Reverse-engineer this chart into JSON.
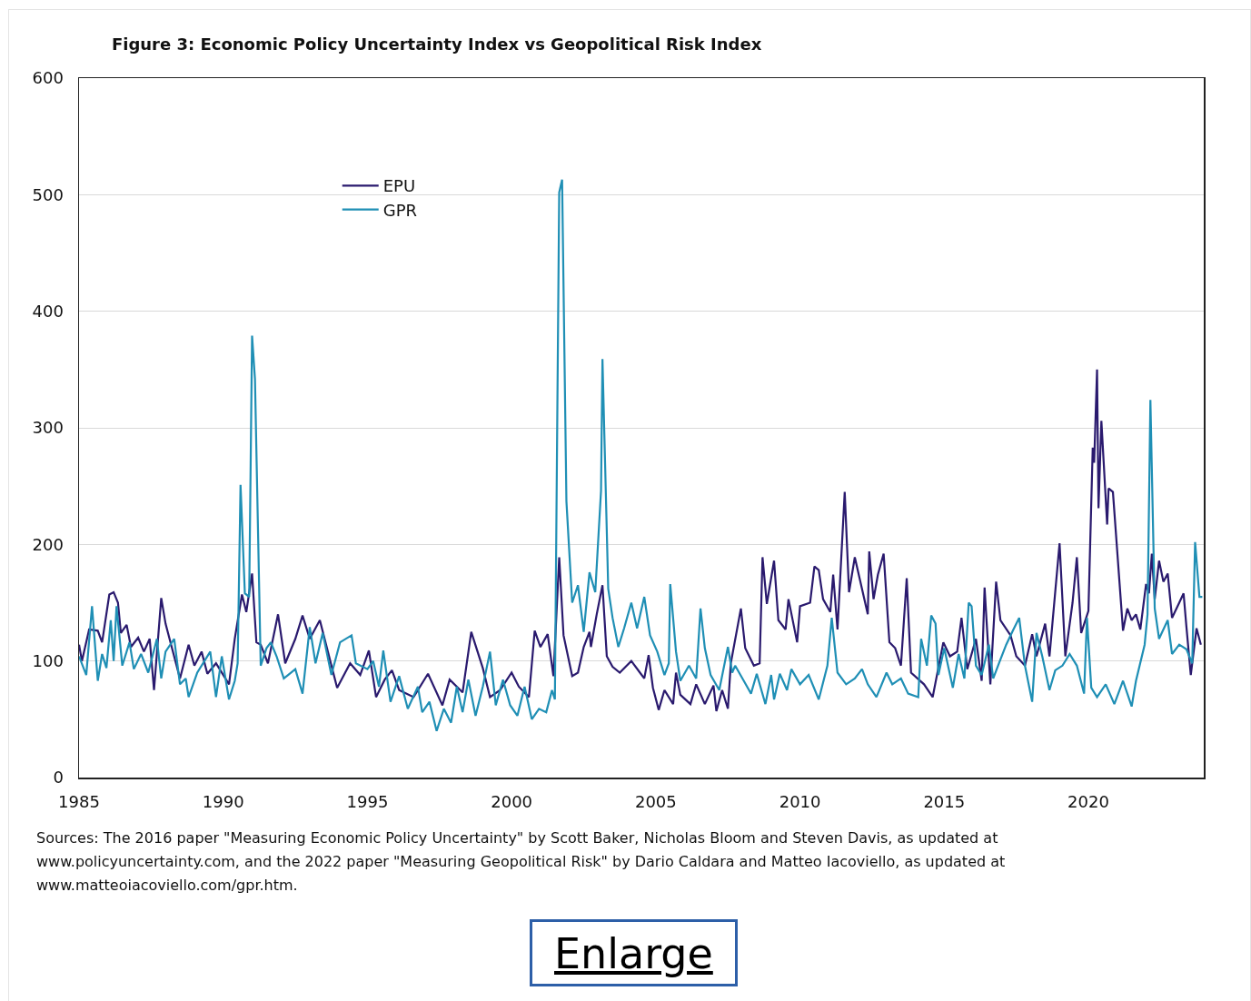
{
  "chart_data": {
    "type": "line",
    "title": "Figure 3: Economic Policy Uncertainty Index vs Geopolitical Risk Index",
    "xlim": [
      1985,
      2024
    ],
    "xticks": [
      1985,
      1990,
      1995,
      2000,
      2005,
      2010,
      2015,
      2020
    ],
    "ylim": [
      0,
      600
    ],
    "yticks": [
      0,
      100,
      200,
      300,
      400,
      500,
      600
    ],
    "grid": "y",
    "legend": "top left",
    "line_style": "solid",
    "marker": "none",
    "series": [
      {
        "name": "EPU",
        "color": "#2a1a6e",
        "x": [
          1985.0,
          1985.1,
          1985.35,
          1985.65,
          1985.8,
          1986.05,
          1986.2,
          1986.35,
          1986.45,
          1986.65,
          1986.8,
          1987.05,
          1987.25,
          1987.45,
          1987.6,
          1987.85,
          1988.0,
          1988.5,
          1988.8,
          1989.0,
          1989.25,
          1989.45,
          1989.75,
          1990.2,
          1990.4,
          1990.65,
          1990.8,
          1991.0,
          1991.15,
          1991.3,
          1991.55,
          1991.9,
          1992.15,
          1992.5,
          1992.75,
          1993.0,
          1993.35,
          1993.7,
          1993.95,
          1994.4,
          1994.75,
          1995.05,
          1995.3,
          1995.6,
          1995.85,
          1996.1,
          1996.6,
          1997.1,
          1997.6,
          1997.85,
          1998.3,
          1998.6,
          1999.0,
          1999.25,
          1999.6,
          2000.0,
          2000.25,
          2000.6,
          2000.8,
          2001.0,
          2001.25,
          2001.45,
          2001.65,
          2001.8,
          2002.1,
          2002.3,
          2002.5,
          2002.7,
          2002.75,
          2002.95,
          2003.15,
          2003.3,
          2003.5,
          2003.75,
          2004.15,
          2004.45,
          2004.6,
          2004.75,
          2004.9,
          2005.1,
          2005.3,
          2005.6,
          2005.7,
          2005.85,
          2006.2,
          2006.4,
          2006.7,
          2007.0,
          2007.1,
          2007.3,
          2007.5,
          2007.6,
          2007.95,
          2008.1,
          2008.4,
          2008.6,
          2008.7,
          2008.85,
          2009.1,
          2009.25,
          2009.5,
          2009.6,
          2009.9,
          2010.0,
          2010.35,
          2010.5,
          2010.65,
          2010.8,
          2011.05,
          2011.15,
          2011.3,
          2011.55,
          2011.7,
          2011.9,
          2012.35,
          2012.4,
          2012.55,
          2012.7,
          2012.9,
          2013.1,
          2013.3,
          2013.5,
          2013.7,
          2013.85,
          2014.3,
          2014.6,
          2014.97,
          2015.2,
          2015.45,
          2015.6,
          2015.8,
          2016.1,
          2016.3,
          2016.4,
          2016.6,
          2016.8,
          2016.95,
          2017.3,
          2017.5,
          2017.8,
          2018.05,
          2018.2,
          2018.5,
          2018.65,
          2019.0,
          2019.2,
          2019.45,
          2019.6,
          2019.75,
          2020.0,
          2020.15,
          2020.2,
          2020.3,
          2020.35,
          2020.45,
          2020.65,
          2020.7,
          2020.85,
          2021.2,
          2021.35,
          2021.5,
          2021.65,
          2021.8,
          2022.0,
          2022.1,
          2022.2,
          2022.3,
          2022.45,
          2022.6,
          2022.75,
          2022.9,
          2023.15,
          2023.3,
          2023.4,
          2023.55,
          2023.75,
          2023.9
        ],
        "values": [
          114,
          100,
          127,
          126,
          116,
          157,
          159,
          150,
          124,
          131,
          112,
          120,
          108,
          119,
          75,
          154,
          132,
          85,
          114,
          96,
          108,
          89,
          98,
          80,
          119,
          157,
          142,
          175,
          116,
          114,
          98,
          140,
          98,
          119,
          139,
          119,
          135,
          101,
          77,
          98,
          88,
          109,
          69,
          84,
          92,
          75,
          69,
          89,
          62,
          84,
          73,
          125,
          94,
          69,
          75,
          90,
          78,
          69,
          126,
          112,
          123,
          87,
          189,
          122,
          87,
          90,
          112,
          125,
          112,
          140,
          165,
          104,
          95,
          90,
          100,
          90,
          85,
          105,
          77,
          58,
          75,
          63,
          90,
          71,
          63,
          80,
          63,
          79,
          57,
          75,
          59,
          98,
          145,
          111,
          96,
          98,
          189,
          149,
          186,
          135,
          127,
          153,
          116,
          147,
          150,
          181,
          178,
          153,
          142,
          174,
          127,
          245,
          159,
          189,
          140,
          194,
          153,
          174,
          192,
          116,
          111,
          96,
          171,
          90,
          80,
          69,
          116,
          104,
          108,
          137,
          93,
          119,
          83,
          163,
          80,
          168,
          135,
          122,
          104,
          96,
          123,
          104,
          132,
          104,
          201,
          104,
          150,
          189,
          124,
          143,
          283,
          270,
          350,
          231,
          306,
          217,
          248,
          245,
          126,
          145,
          135,
          140,
          127,
          166,
          158,
          192,
          153,
          186,
          168,
          175,
          137,
          150,
          158,
          129,
          88,
          128,
          114
        ]
      },
      {
        "name": "GPR",
        "color": "#1f8fb5",
        "x": [
          1985.0,
          1985.25,
          1985.45,
          1985.65,
          1985.8,
          1985.95,
          1986.1,
          1986.2,
          1986.3,
          1986.5,
          1986.75,
          1986.9,
          1987.15,
          1987.4,
          1987.7,
          1987.85,
          1988.0,
          1988.3,
          1988.5,
          1988.7,
          1988.8,
          1989.1,
          1989.55,
          1989.75,
          1989.95,
          1990.2,
          1990.4,
          1990.5,
          1990.6,
          1990.75,
          1990.9,
          1991.0,
          1991.1,
          1991.3,
          1991.5,
          1991.65,
          1991.85,
          1992.1,
          1992.25,
          1992.5,
          1992.75,
          1993.0,
          1993.2,
          1993.45,
          1993.75,
          1994.05,
          1994.45,
          1994.6,
          1995.0,
          1995.2,
          1995.4,
          1995.55,
          1995.8,
          1996.1,
          1996.4,
          1996.75,
          1996.9,
          1997.15,
          1997.4,
          1997.65,
          1997.9,
          1998.1,
          1998.3,
          1998.5,
          1998.75,
          1999.0,
          1999.25,
          1999.45,
          1999.7,
          1999.95,
          2000.2,
          2000.45,
          2000.7,
          2000.95,
          2001.2,
          2001.4,
          2001.5,
          2001.65,
          2001.75,
          2001.9,
          2002.1,
          2002.3,
          2002.5,
          2002.7,
          2002.9,
          2003.1,
          2003.15,
          2003.35,
          2003.5,
          2003.7,
          2003.9,
          2004.15,
          2004.35,
          2004.6,
          2004.8,
          2005.05,
          2005.3,
          2005.45,
          2005.5,
          2005.7,
          2005.85,
          2006.15,
          2006.4,
          2006.55,
          2006.7,
          2006.9,
          2007.2,
          2007.5,
          2007.65,
          2007.75,
          2008.05,
          2008.3,
          2008.5,
          2008.8,
          2009.0,
          2009.1,
          2009.3,
          2009.55,
          2009.7,
          2010.0,
          2010.3,
          2010.65,
          2010.95,
          2011.1,
          2011.3,
          2011.6,
          2011.9,
          2012.15,
          2012.35,
          2012.65,
          2013.0,
          2013.2,
          2013.5,
          2013.75,
          2014.1,
          2014.2,
          2014.4,
          2014.55,
          2014.7,
          2014.8,
          2015.0,
          2015.3,
          2015.5,
          2015.7,
          2015.85,
          2015.95,
          2016.1,
          2016.3,
          2016.55,
          2016.7,
          2016.9,
          2017.15,
          2017.4,
          2017.6,
          2017.8,
          2018.05,
          2018.2,
          2018.4,
          2018.65,
          2018.85,
          2019.1,
          2019.35,
          2019.6,
          2019.85,
          2019.95,
          2020.1,
          2020.3,
          2020.6,
          2020.9,
          2021.2,
          2021.5,
          2021.65,
          2021.95,
          2022.05,
          2022.15,
          2022.3,
          2022.45,
          2022.75,
          2022.9,
          2023.15,
          2023.4,
          2023.6,
          2023.7,
          2023.85,
          2023.95
        ],
        "values": [
          104,
          88,
          147,
          83,
          106,
          94,
          135,
          100,
          147,
          96,
          116,
          93,
          106,
          90,
          119,
          85,
          108,
          119,
          80,
          85,
          69,
          90,
          108,
          69,
          104,
          67,
          83,
          98,
          251,
          158,
          155,
          379,
          342,
          96,
          111,
          116,
          104,
          85,
          88,
          93,
          72,
          129,
          98,
          124,
          88,
          116,
          122,
          98,
          93,
          100,
          78,
          109,
          65,
          87,
          59,
          78,
          56,
          65,
          40,
          59,
          47,
          78,
          56,
          84,
          53,
          78,
          108,
          62,
          84,
          62,
          53,
          78,
          50,
          59,
          56,
          75,
          67,
          502,
          513,
          237,
          150,
          165,
          125,
          176,
          159,
          246,
          359,
          162,
          137,
          112,
          128,
          150,
          128,
          155,
          122,
          108,
          88,
          98,
          166,
          108,
          83,
          96,
          85,
          145,
          111,
          88,
          75,
          112,
          90,
          96,
          83,
          72,
          89,
          63,
          88,
          67,
          89,
          75,
          93,
          80,
          88,
          67,
          96,
          137,
          90,
          80,
          85,
          93,
          80,
          69,
          90,
          80,
          85,
          72,
          69,
          119,
          96,
          139,
          132,
          88,
          111,
          77,
          106,
          85,
          150,
          147,
          96,
          88,
          114,
          85,
          98,
          114,
          127,
          137,
          96,
          65,
          124,
          104,
          75,
          92,
          96,
          106,
          96,
          72,
          137,
          77,
          69,
          80,
          63,
          83,
          61,
          83,
          114,
          140,
          324,
          145,
          119,
          135,
          106,
          114,
          110,
          98,
          202,
          155,
          155
        ]
      }
    ],
    "annotations": [
      "Sources: The 2016  paper \"Measuring Economic Policy Uncertainty\" by Scott Baker, Nicholas Bloom and Steven Davis, as updated at www.policyuncertainty.com, and the 2022 paper \"Measuring Geopolitical Risk\" by Dario Caldara and Matteo Iacoviello, as updated at www.matteoiacoviello.com/gpr.htm.",
      "Enlarge"
    ]
  }
}
